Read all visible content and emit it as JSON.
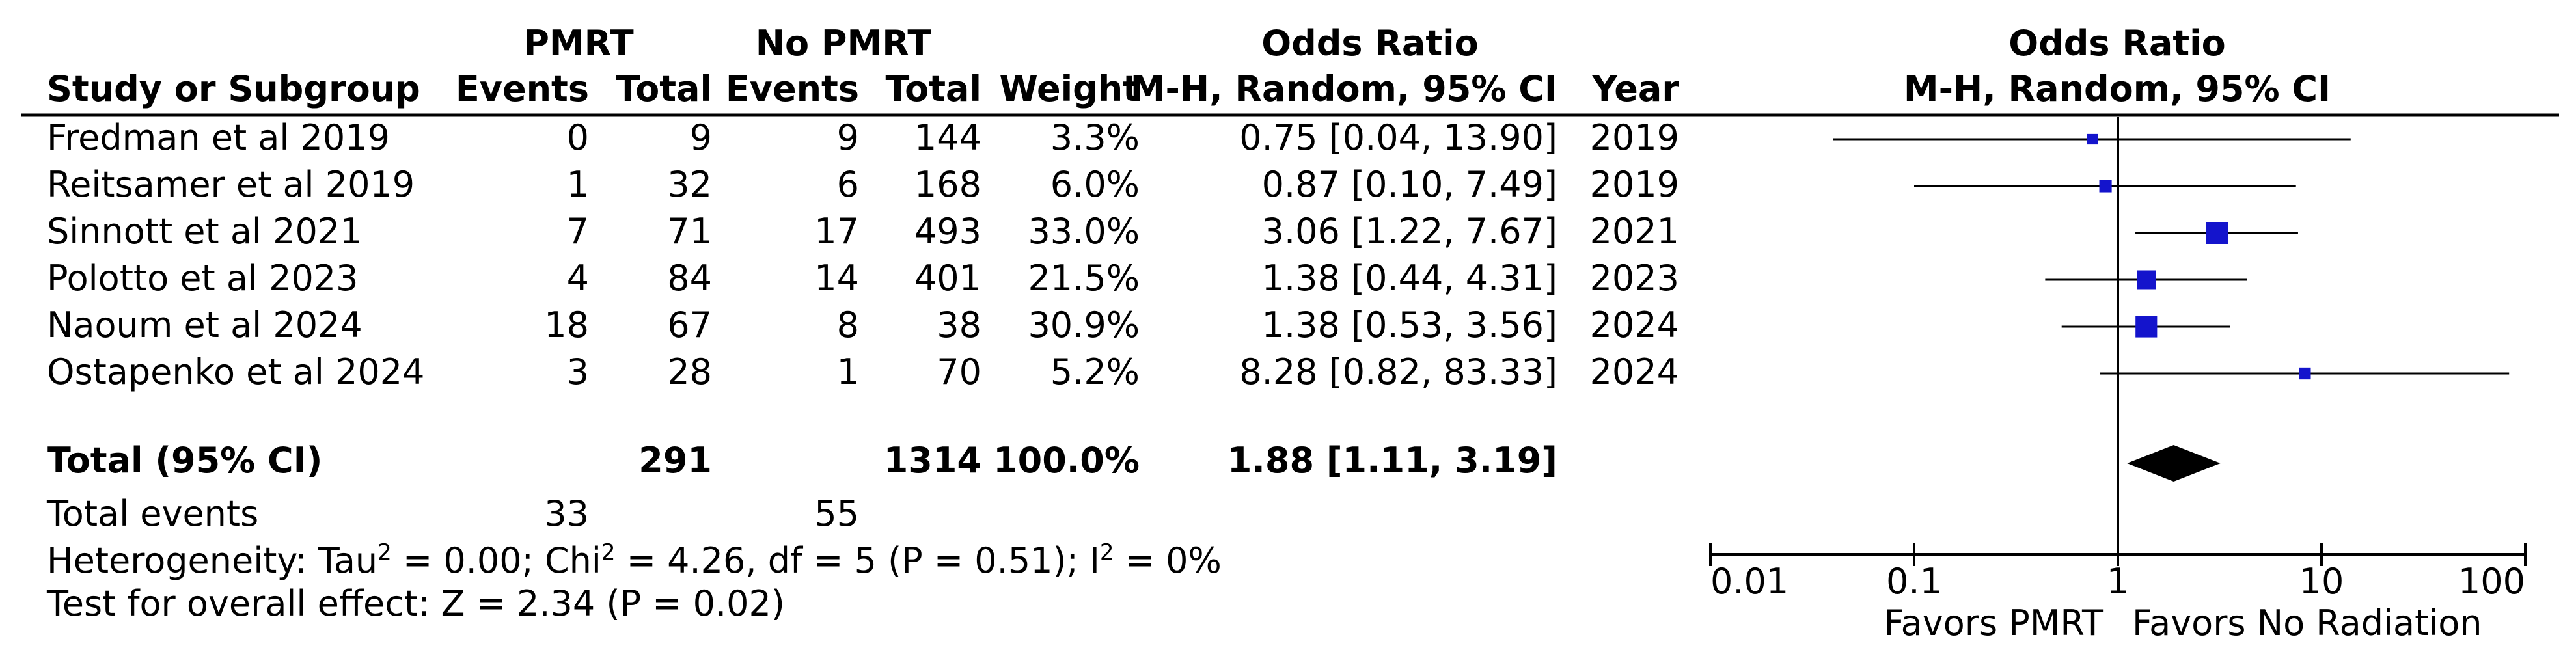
{
  "table": {
    "group_headers": {
      "experimental": "PMRT",
      "control": "No PMRT",
      "effect_measure": "Odds Ratio"
    },
    "column_headers": {
      "study": "Study or Subgroup",
      "exp_events": "Events",
      "exp_total": "Total",
      "ctl_events": "Events",
      "ctl_total": "Total",
      "weight": "Weight",
      "ci": "M-H, Random, 95% CI",
      "year": "Year"
    },
    "rows": [
      {
        "study": "Fredman et al 2019",
        "exp_events": "0",
        "exp_total": "9",
        "ctl_events": "9",
        "ctl_total": "144",
        "weight": "3.3%",
        "ci": "0.75 [0.04, 13.90]",
        "year": "2019"
      },
      {
        "study": "Reitsamer et al 2019",
        "exp_events": "1",
        "exp_total": "32",
        "ctl_events": "6",
        "ctl_total": "168",
        "weight": "6.0%",
        "ci": "0.87 [0.10, 7.49]",
        "year": "2019"
      },
      {
        "study": "Sinnott et al 2021",
        "exp_events": "7",
        "exp_total": "71",
        "ctl_events": "17",
        "ctl_total": "493",
        "weight": "33.0%",
        "ci": "3.06 [1.22, 7.67]",
        "year": "2021"
      },
      {
        "study": "Polotto et al 2023",
        "exp_events": "4",
        "exp_total": "84",
        "ctl_events": "14",
        "ctl_total": "401",
        "weight": "21.5%",
        "ci": "1.38 [0.44, 4.31]",
        "year": "2023"
      },
      {
        "study": "Naoum et al 2024",
        "exp_events": "18",
        "exp_total": "67",
        "ctl_events": "8",
        "ctl_total": "38",
        "weight": "30.9%",
        "ci": "1.38 [0.53, 3.56]",
        "year": "2024"
      },
      {
        "study": "Ostapenko et al 2024",
        "exp_events": "3",
        "exp_total": "28",
        "ctl_events": "1",
        "ctl_total": "70",
        "weight": "5.2%",
        "ci": "8.28 [0.82, 83.33]",
        "year": "2024"
      }
    ],
    "total": {
      "label": "Total (95% CI)",
      "exp_total": "291",
      "ctl_total": "1314",
      "weight": "100.0%",
      "ci": "1.88 [1.11, 3.19]"
    },
    "total_events": {
      "label": "Total events",
      "exp_events": "33",
      "ctl_events": "55"
    },
    "heterogeneity": {
      "prefix": "Heterogeneity: Tau",
      "tau_exp": "2",
      "chi_part": " = 0.00; Chi",
      "chi_exp": "2",
      "middle": " = 4.26, df = 5 (P = 0.51); I",
      "i_exp": "2",
      "suffix": " = 0%"
    },
    "overall_effect": "Test for overall effect: Z = 2.34 (P = 0.02)"
  },
  "chart_data": {
    "type": "scatter",
    "title": "Odds Ratio",
    "subtitle": "M-H, Random, 95% CI",
    "xscale": "log",
    "xlim": [
      0.01,
      100
    ],
    "xticks": [
      0.01,
      0.1,
      1,
      10,
      100
    ],
    "xtick_labels": [
      "0.01",
      "0.1",
      "1",
      "10",
      "100"
    ],
    "reference_line": 1,
    "favors_left": "Favors PMRT",
    "favors_right": "Favors No Radiation",
    "marker_color": "#1414cc",
    "diamond_color": "#000000",
    "studies": [
      {
        "name": "Fredman et al 2019",
        "or": 0.75,
        "lo": 0.04,
        "hi": 13.9,
        "weight": 3.3
      },
      {
        "name": "Reitsamer et al 2019",
        "or": 0.87,
        "lo": 0.1,
        "hi": 7.49,
        "weight": 6.0
      },
      {
        "name": "Sinnott et al 2021",
        "or": 3.06,
        "lo": 1.22,
        "hi": 7.67,
        "weight": 33.0
      },
      {
        "name": "Polotto et al 2023",
        "or": 1.38,
        "lo": 0.44,
        "hi": 4.31,
        "weight": 21.5
      },
      {
        "name": "Naoum et al 2024",
        "or": 1.38,
        "lo": 0.53,
        "hi": 3.56,
        "weight": 30.9
      },
      {
        "name": "Ostapenko et al 2024",
        "or": 8.28,
        "lo": 0.82,
        "hi": 83.33,
        "weight": 5.2
      }
    ],
    "pooled": {
      "or": 1.88,
      "lo": 1.11,
      "hi": 3.19
    }
  }
}
